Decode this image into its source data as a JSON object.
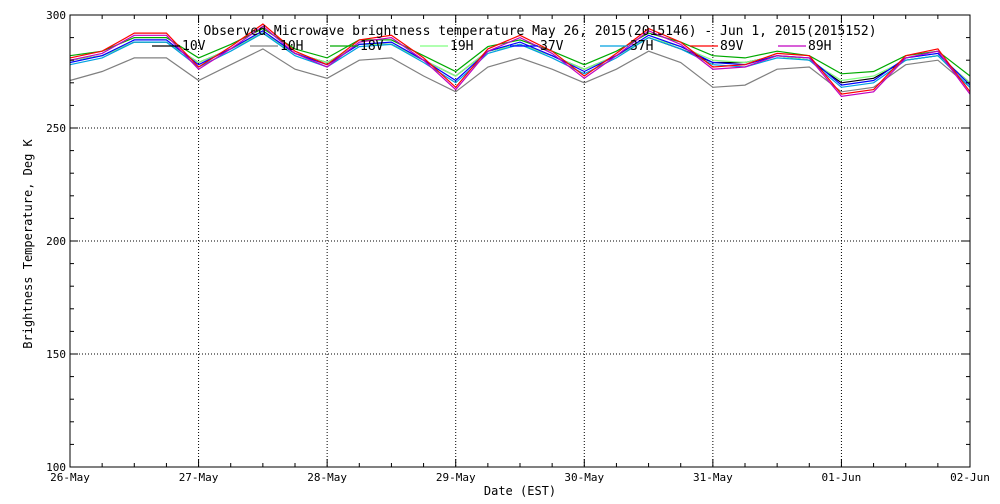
{
  "chart_data": {
    "type": "line",
    "title": "Observed Microwave brightness temperature May 26, 2015(2015146) - Jun  1, 2015(2015152)",
    "xlabel": "Date (EST)",
    "ylabel": "Brightness Temperature, Deg K",
    "ylim": [
      100,
      300
    ],
    "xlim": [
      0,
      7
    ],
    "x_unit": "days since 26-May 00:00 EST",
    "grid": true,
    "legend_position": "top",
    "x_ticks": [
      {
        "x": 0,
        "label": "26-May"
      },
      {
        "x": 1,
        "label": "27-May"
      },
      {
        "x": 2,
        "label": "28-May"
      },
      {
        "x": 3,
        "label": "29-May"
      },
      {
        "x": 4,
        "label": "30-May"
      },
      {
        "x": 5,
        "label": "31-May"
      },
      {
        "x": 6,
        "label": "01-Jun"
      },
      {
        "x": 7,
        "label": "02-Jun"
      }
    ],
    "y_ticks": [
      100,
      150,
      200,
      250,
      300
    ],
    "x": [
      0.0,
      0.25,
      0.5,
      0.75,
      1.0,
      1.25,
      1.5,
      1.75,
      2.0,
      2.25,
      2.5,
      2.75,
      3.0,
      3.25,
      3.5,
      3.75,
      4.0,
      4.25,
      4.5,
      4.75,
      5.0,
      5.25,
      5.5,
      5.75,
      6.0,
      6.25,
      6.5,
      6.75,
      7.0
    ],
    "series": [
      {
        "name": "10V",
        "color": "#000000",
        "values": [
          280,
          282,
          288,
          288,
          279,
          285,
          292,
          283,
          279,
          287,
          287,
          280,
          273,
          284,
          287,
          282,
          276,
          282,
          290,
          285,
          279,
          279,
          282,
          280,
          270,
          272,
          280,
          282,
          270
        ]
      },
      {
        "name": "10H",
        "color": "#808080",
        "values": [
          271,
          275,
          281,
          281,
          271,
          278,
          285,
          276,
          272,
          280,
          281,
          273,
          266,
          277,
          281,
          276,
          270,
          276,
          284,
          279,
          268,
          269,
          276,
          277,
          266,
          268,
          278,
          280,
          268
        ]
      },
      {
        "name": "18V",
        "color": "#00aa00",
        "values": [
          282,
          284,
          290,
          290,
          281,
          287,
          294,
          285,
          281,
          289,
          289,
          282,
          275,
          286,
          289,
          284,
          278,
          284,
          292,
          288,
          282,
          281,
          284,
          282,
          274,
          275,
          282,
          284,
          273
        ]
      },
      {
        "name": "19H",
        "color": "#80ff80",
        "values": [
          280,
          282,
          288,
          288,
          279,
          285,
          292,
          283,
          279,
          287,
          287,
          280,
          273,
          284,
          287,
          282,
          276,
          282,
          290,
          286,
          280,
          279,
          282,
          280,
          271,
          273,
          280,
          282,
          270
        ]
      },
      {
        "name": "37V",
        "color": "#0000ff",
        "values": [
          279,
          282,
          289,
          289,
          278,
          285,
          293,
          283,
          278,
          287,
          288,
          280,
          271,
          284,
          288,
          282,
          275,
          282,
          291,
          286,
          279,
          278,
          282,
          281,
          269,
          271,
          281,
          283,
          269
        ]
      },
      {
        "name": "37H",
        "color": "#00a0e0",
        "values": [
          278,
          281,
          288,
          288,
          277,
          284,
          292,
          282,
          277,
          286,
          287,
          279,
          270,
          283,
          287,
          281,
          274,
          281,
          290,
          285,
          278,
          277,
          281,
          280,
          268,
          270,
          280,
          282,
          268
        ]
      },
      {
        "name": "89V",
        "color": "#ff0000",
        "values": [
          281,
          284,
          292,
          292,
          277,
          286,
          296,
          284,
          278,
          289,
          291,
          281,
          268,
          285,
          291,
          284,
          273,
          283,
          294,
          288,
          277,
          278,
          283,
          282,
          265,
          267,
          282,
          285,
          266
        ]
      },
      {
        "name": "89H",
        "color": "#c000c0",
        "values": [
          280,
          283,
          291,
          291,
          276,
          285,
          295,
          283,
          277,
          288,
          290,
          280,
          267,
          284,
          290,
          283,
          272,
          282,
          293,
          287,
          276,
          277,
          282,
          281,
          264,
          266,
          281,
          284,
          265
        ]
      }
    ]
  }
}
